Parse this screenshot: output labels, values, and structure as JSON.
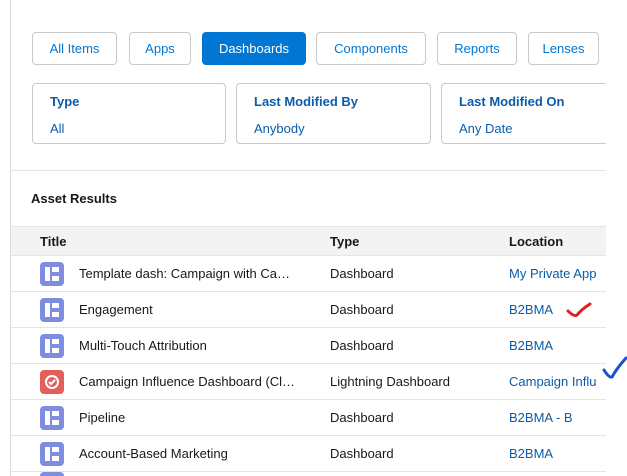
{
  "tabs": [
    "All Items",
    "Apps",
    "Dashboards",
    "Components",
    "Reports",
    "Lenses"
  ],
  "filters": [
    {
      "label": "Type",
      "value": "All"
    },
    {
      "label": "Last Modified By",
      "value": "Anybody"
    },
    {
      "label": "Last Modified On",
      "value": "Any Date"
    }
  ],
  "section_title": "Asset Results",
  "table": {
    "columns": [
      "Title",
      "Type",
      "Location"
    ],
    "rows": [
      [
        "Template dash: Campaign with Ca…",
        "Dashboard",
        "My Private App"
      ],
      [
        "Engagement",
        "Dashboard",
        "B2BMA"
      ],
      [
        "Multi-Touch Attribution",
        "Dashboard",
        "B2BMA"
      ],
      [
        "Campaign Influence Dashboard (Cl…",
        "Lightning Dashboard",
        "Campaign Influ"
      ],
      [
        "Pipeline",
        "Dashboard",
        "B2BMA - B"
      ],
      [
        "Account-Based Marketing",
        "Dashboard",
        "B2BMA"
      ]
    ]
  }
}
